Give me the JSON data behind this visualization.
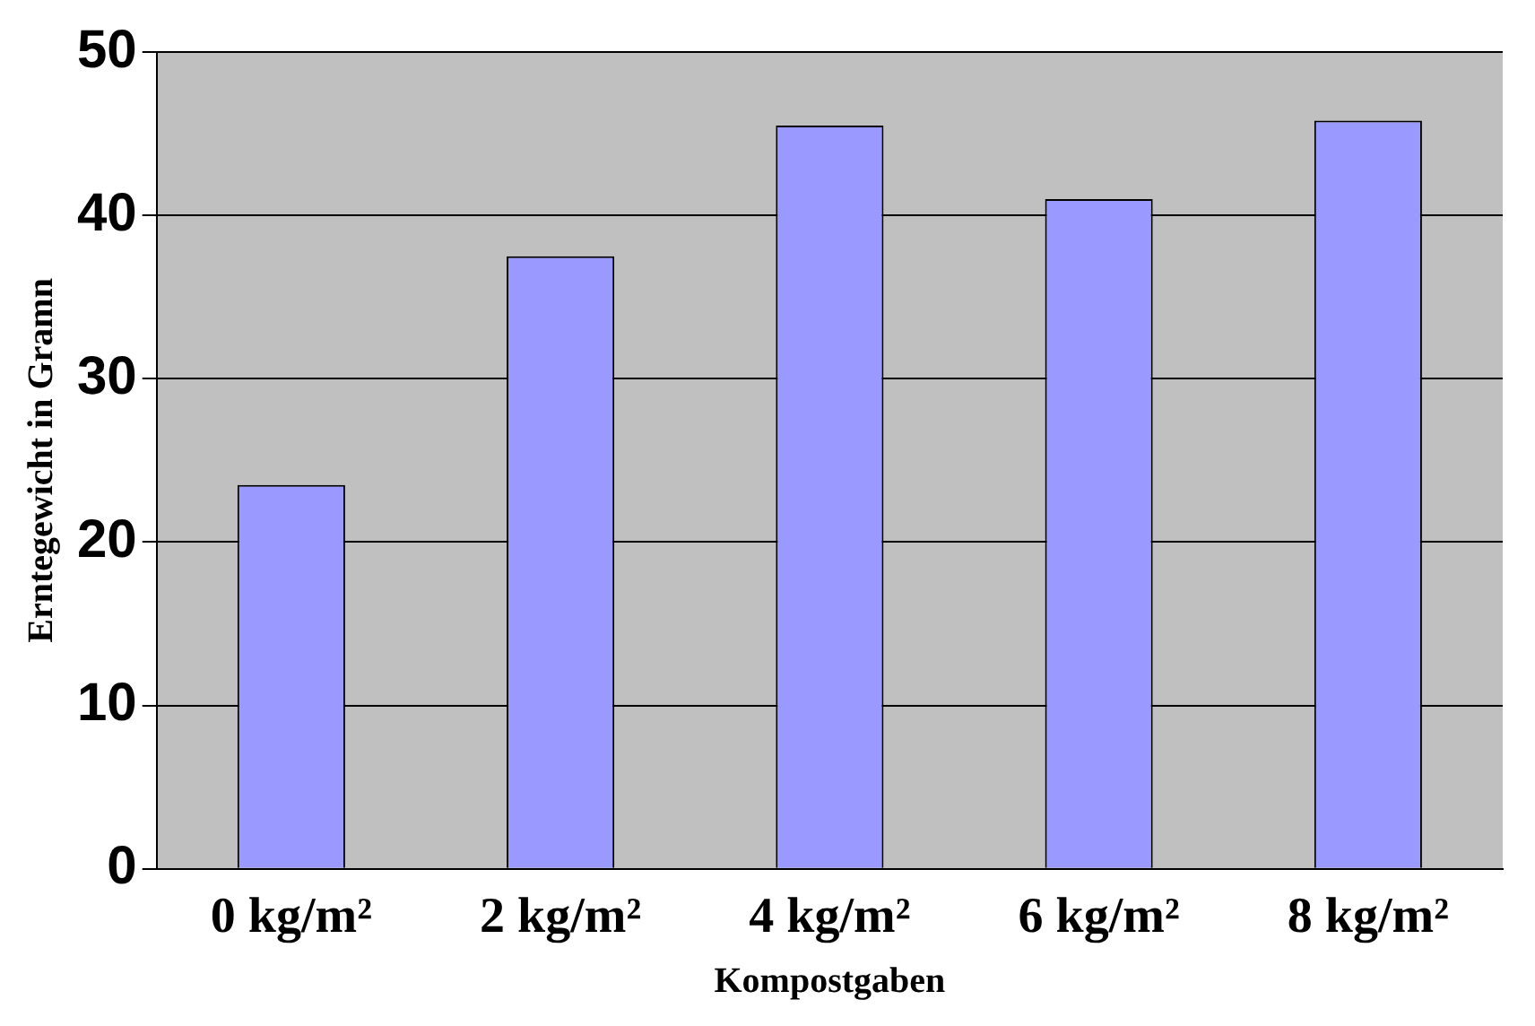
{
  "chart_data": {
    "type": "bar",
    "xlabel": "Kompostgaben",
    "ylabel": "Erntegewicht in Gramn",
    "categories": [
      "0 kg/m²",
      "2 kg/m²",
      "4 kg/m²",
      "6 kg/m²",
      "8 kg/m²"
    ],
    "values": [
      23.5,
      37.5,
      45.5,
      41,
      45.8
    ],
    "color": "#9999ff",
    "ylim": [
      0,
      50
    ],
    "yticks": [
      0,
      10,
      20,
      30,
      40,
      50
    ],
    "grid": "y",
    "legend": false
  }
}
